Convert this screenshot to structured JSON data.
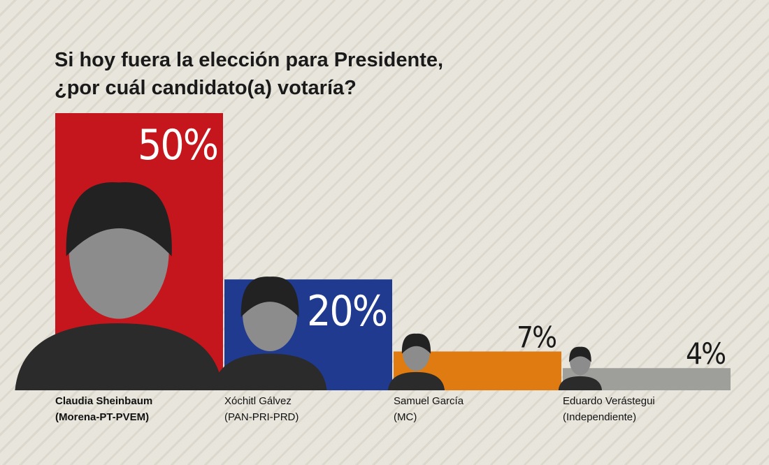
{
  "chart_data": {
    "type": "bar",
    "title_lines": [
      "Si hoy fuera la elección para Presidente,",
      "¿por cuál candidato(a) votaría?"
    ],
    "categories": [
      "Claudia Sheinbaum",
      "Xóchitl Gálvez",
      "Samuel García",
      "Eduardo Verástegui"
    ],
    "parties": [
      "(Morena-PT-PVEM)",
      "(PAN-PRI-PRD)",
      "(MC)",
      "(Independiente)"
    ],
    "values": [
      50,
      20,
      7,
      4
    ],
    "value_labels": [
      "50%",
      "20%",
      "7%",
      "4%"
    ],
    "colors": [
      "#c4161c",
      "#1f3a8f",
      "#e07b12",
      "#9e9e9a"
    ]
  }
}
